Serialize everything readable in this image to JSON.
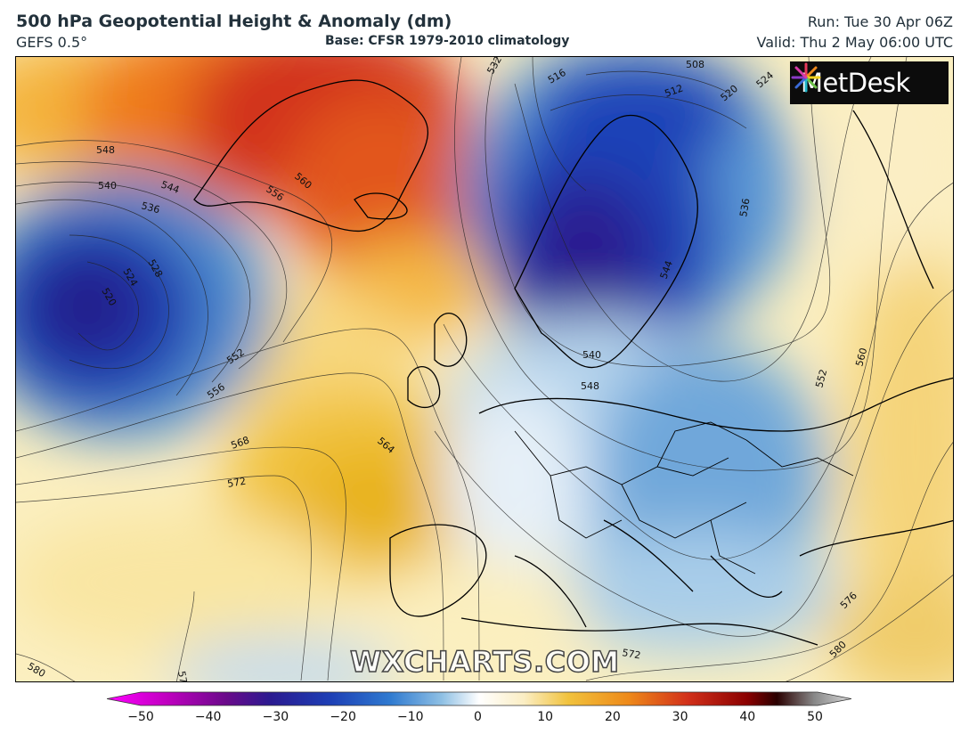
{
  "header": {
    "title": "500 hPa Geopotential Height & Anomaly (dm)",
    "model": "GEFS 0.5°",
    "base": "Base: CFSR 1979-2010 climatology",
    "run": "Run: Tue 30 Apr 06Z",
    "valid": "Valid: Thu 2 May 06:00 UTC"
  },
  "logo": {
    "text": "MetDesk",
    "icon": "starburst-icon"
  },
  "watermark": "WXCHARTS.COM",
  "contour_labels": [
    "508",
    "512",
    "516",
    "520",
    "524",
    "528",
    "532",
    "536",
    "540",
    "544",
    "548",
    "552",
    "556",
    "560",
    "564",
    "568",
    "572",
    "576",
    "580"
  ],
  "colorbar": {
    "ticks": [
      "−50",
      "−40",
      "−30",
      "−20",
      "−10",
      "0",
      "10",
      "20",
      "30",
      "40",
      "50"
    ],
    "min": -50,
    "max": 50,
    "colors": {
      "neg_extreme": "#ff00ff",
      "deep_blue": "#1a1a9a",
      "mid_blue": "#2f7ad0",
      "light_blue": "#cfe3f1",
      "white": "#ffffff",
      "yellow": "#f6d870",
      "orange": "#ee8a1a",
      "red": "#c21d12",
      "dark_red": "#3a0000",
      "pos_extreme": "#c8c8c8"
    }
  }
}
